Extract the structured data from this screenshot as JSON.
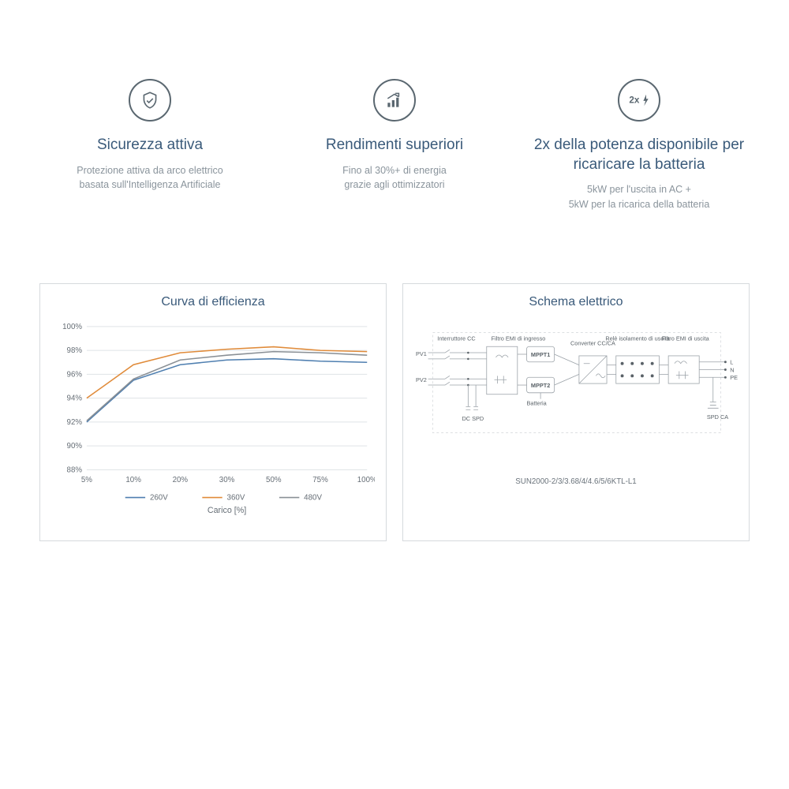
{
  "features": [
    {
      "icon": "shield",
      "title": "Sicurezza attiva",
      "desc": "Protezione attiva da arco elettrico\nbasata sull'Intelligenza Artificiale"
    },
    {
      "icon": "growth-chart",
      "title": "Rendimenti superiori",
      "desc": "Fino al 30%+ di energia\ngrazie agli ottimizzatori"
    },
    {
      "icon": "2x-bolt",
      "title": "2x della potenza disponibile per\nricaricare la batteria",
      "desc": "5kW per l'uscita in AC +\n5kW per la ricarica della batteria"
    }
  ],
  "efficiency_chart": {
    "title": "Curva di efficienza",
    "type": "line",
    "x_categories": [
      "5%",
      "10%",
      "20%",
      "30%",
      "50%",
      "75%",
      "100%"
    ],
    "x_axis_title": "Carico [%]",
    "ylim": [
      88,
      100
    ],
    "ytick_step": 2,
    "y_ticks": [
      "88%",
      "90%",
      "92%",
      "94%",
      "96%",
      "98%",
      "100%"
    ],
    "grid_color": "#dfe3e6",
    "axis_color": "#bfc4c8",
    "label_color": "#666e76",
    "legend": [
      {
        "label": "260V",
        "color": "#4f7fb0"
      },
      {
        "label": "360V",
        "color": "#e08b3a"
      },
      {
        "label": "480V",
        "color": "#8a9096"
      }
    ],
    "series": [
      {
        "name": "260V",
        "color": "#4f7fb0",
        "values": [
          92.0,
          95.5,
          96.8,
          97.2,
          97.3,
          97.1,
          97.0
        ]
      },
      {
        "name": "360V",
        "color": "#e08b3a",
        "values": [
          94.0,
          96.8,
          97.8,
          98.1,
          98.3,
          98.0,
          97.9
        ]
      },
      {
        "name": "480V",
        "color": "#8a9096",
        "values": [
          92.1,
          95.6,
          97.2,
          97.6,
          97.9,
          97.8,
          97.6
        ]
      }
    ],
    "line_width": 1.6
  },
  "schematic": {
    "title": "Schema elettrico",
    "model_label": "SUN2000-2/3/3.68/4/4.6/5/6KTL-L1",
    "labels": {
      "interruttore": "Interruttore CC",
      "emi_in": "Filtro EMI di ingresso",
      "pv1": "PV1",
      "pv2": "PV2",
      "dc_spd": "DC SPD",
      "mppt1": "MPPT1",
      "mppt2": "MPPT2",
      "batteria": "Batteria",
      "converter": "Converter CC/CA",
      "relay": "Relè isolamento di uscita",
      "emi_out": "Filtro EMI di uscita",
      "spd_ca": "SPD CA",
      "L": "L",
      "N": "N",
      "PE": "PE"
    },
    "box_stroke": "#9aa1a7",
    "wire_color": "#9aa1a7",
    "text_color": "#5a6268"
  }
}
